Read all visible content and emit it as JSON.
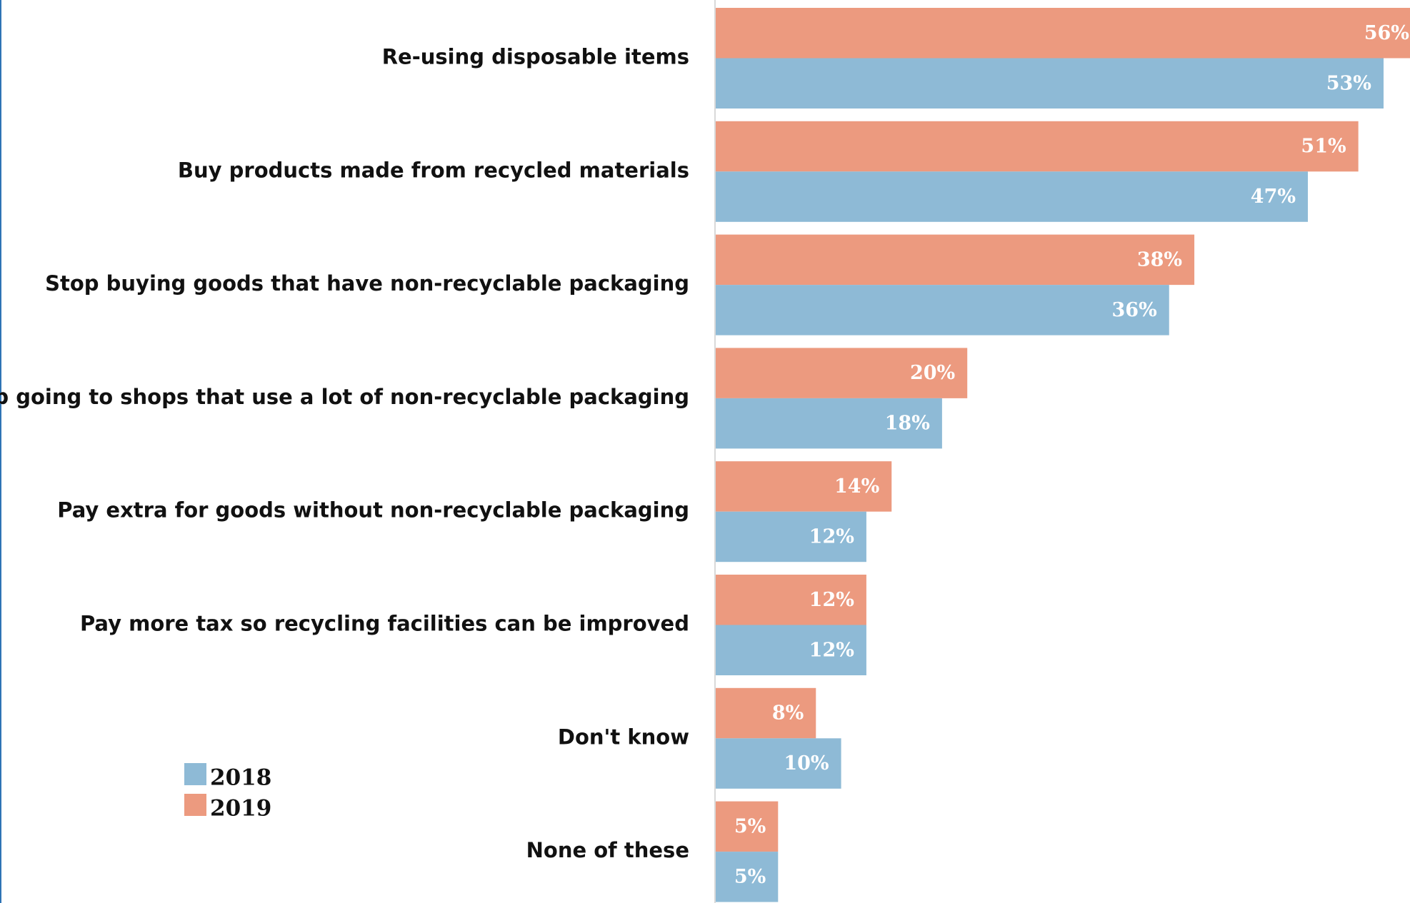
{
  "chart_data": {
    "type": "bar",
    "orientation": "horizontal",
    "categories": [
      "Re-using disposable items",
      "Buy products made from recycled materials",
      "Stop buying goods that have non-recyclable packaging",
      "Stop going to shops that use a lot of non-recyclable packaging",
      "Pay extra for goods without non-recyclable packaging",
      "Pay more tax so recycling facilities can be improved",
      "Don't know",
      "None of these"
    ],
    "series": [
      {
        "name": "2019",
        "color": "#ec9a7f",
        "values": [
          56,
          51,
          38,
          20,
          14,
          12,
          8,
          5
        ],
        "labels": [
          "56%",
          "51%",
          "38%",
          "20%",
          "14%",
          "12%",
          "8%",
          "5%"
        ]
      },
      {
        "name": "2018",
        "color": "#8ebad6",
        "values": [
          53,
          47,
          36,
          18,
          12,
          12,
          10,
          5
        ],
        "labels": [
          "53%",
          "47%",
          "36%",
          "18%",
          "12%",
          "12%",
          "10%",
          "5%"
        ]
      }
    ],
    "legend": {
      "placement": "bottom-left",
      "entries": [
        {
          "name": "2018",
          "color": "#8ebad6"
        },
        {
          "name": "2019",
          "color": "#ec9a7f"
        }
      ]
    },
    "xlim": [
      0,
      56
    ],
    "grid": false,
    "title": "",
    "xlabel": "",
    "ylabel": ""
  }
}
